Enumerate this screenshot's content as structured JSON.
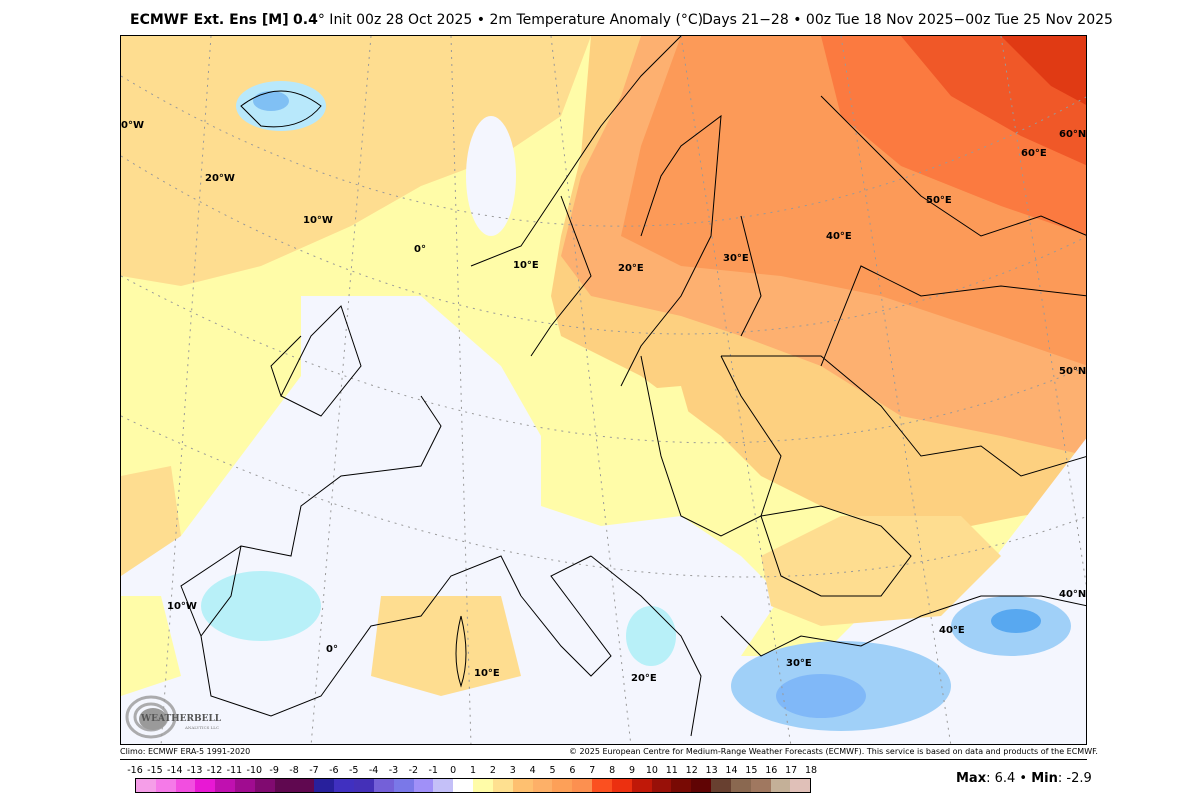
{
  "header": {
    "model": "ECMWF Ext. Ens [M]",
    "resolution": "0.4",
    "degree_symbol": "°",
    "init": " Init 00z 28 Oct 2025 • 2m Temperature Anomaly (°C)",
    "valid": "Days 21−28 • 00z Tue 18 Nov 2025−00z Tue 25 Nov 2025"
  },
  "map": {
    "variable": "2m Temperature Anomaly",
    "units": "°C",
    "region": "Europe",
    "graticule_labels": {
      "lon_top": [
        "0°W",
        "20°W",
        "10°W",
        "0°",
        "10°E",
        "20°E",
        "30°E",
        "40°E",
        "50°E",
        "60°E"
      ],
      "lat_right": [
        "60°N",
        "50°N",
        "40°N"
      ],
      "lon_bottom": [
        "10°W",
        "0°",
        "10°E",
        "20°E",
        "30°E",
        "40°E"
      ]
    },
    "logo": "WeatherBELL Analytics LLC"
  },
  "footer": {
    "climo": "Climo: ECMWF ERA-5 1991-2020",
    "copyright": "© 2025 European Centre for Medium-Range Weather Forecasts (ECMWF). This service is based on data and products of the ECMWF.",
    "max_label": "Max",
    "max_value": ": 6.4 • ",
    "min_label": "Min",
    "min_value": ": -2.9"
  },
  "colorbar": {
    "ticks": [
      "-16",
      "-15",
      "-14",
      "-13",
      "-12",
      "-11",
      "-10",
      "-9",
      "-8",
      "-7",
      "-6",
      "-5",
      "-4",
      "-3",
      "-2",
      "-1",
      "0",
      "1",
      "2",
      "3",
      "4",
      "5",
      "6",
      "7",
      "8",
      "9",
      "10",
      "11",
      "12",
      "13",
      "14",
      "15",
      "16",
      "17",
      "18"
    ],
    "colors": [
      "#f59ee8",
      "#f57ae8",
      "#f24ee0",
      "#e818d4",
      "#c010b0",
      "#a00c90",
      "#800a70",
      "#600850",
      "#600850",
      "#28209c",
      "#4030c0",
      "#4430b8",
      "#7460d8",
      "#7a78e8",
      "#a090f8",
      "#c4c0f8",
      "#e0e0f0",
      "#e8f8e0",
      "#c0f8b0",
      "#98f088",
      "#78f070",
      "#50f050",
      "#30d040",
      "#20b028",
      "#10a010",
      "#1060d0",
      "#2070e8",
      "#40a0f0",
      "#58a8f0",
      "#80b8f8",
      "#a0d0f8",
      "#b8f0f8",
      "#ffffff",
      "#ffffff"
    ]
  }
}
